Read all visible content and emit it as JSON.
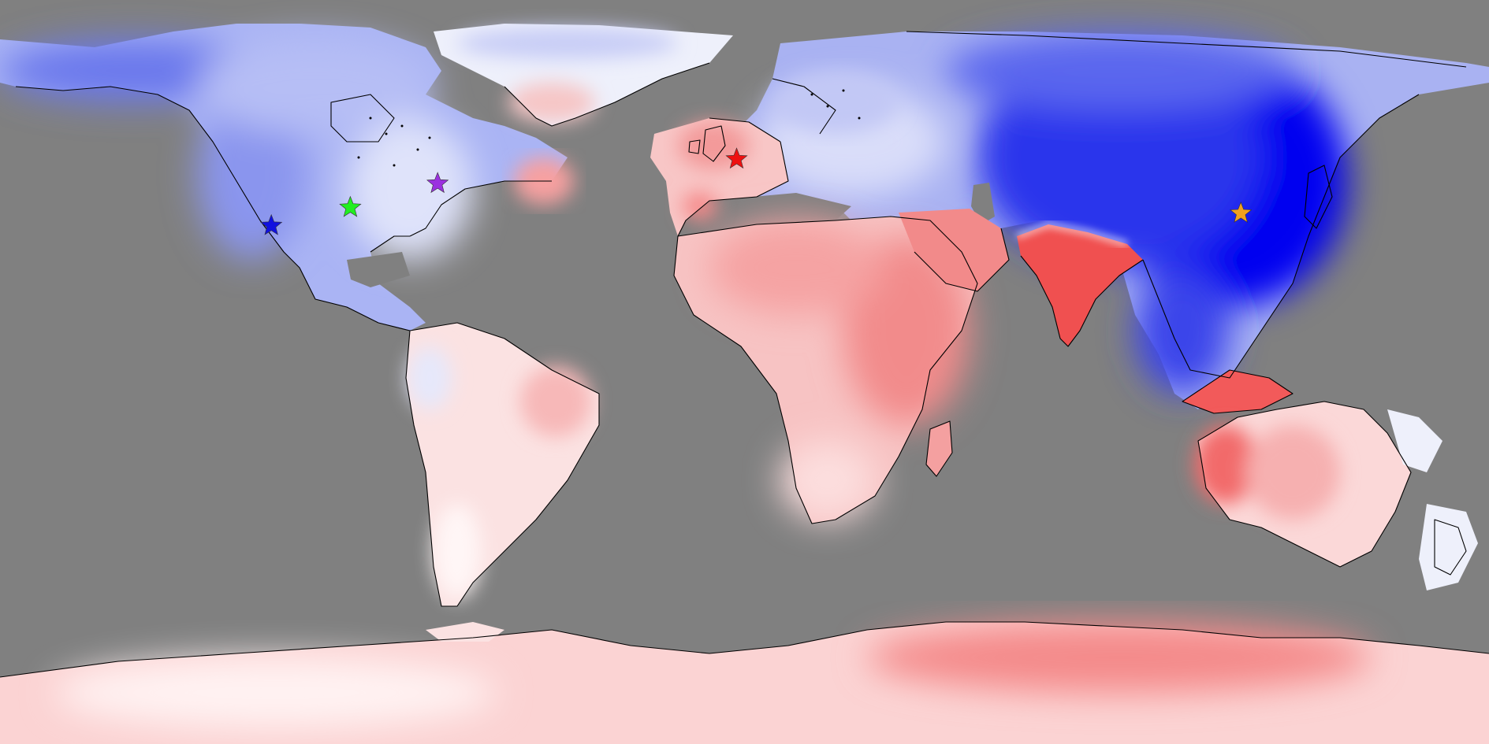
{
  "map": {
    "projection": "equirectangular",
    "ocean_color": "#808080",
    "coastline_color": "#000000",
    "warm_color": "#ff3b3b",
    "cool_color": "#0000ff",
    "neutral_color": "#ffffff"
  },
  "markers": [
    {
      "name": "blue-star-marker",
      "color": "#1010e0",
      "lon": -114.4,
      "lat": 35.4
    },
    {
      "name": "green-star-marker",
      "color": "#22ee22",
      "lon": -95.3,
      "lat": 39.8
    },
    {
      "name": "purple-star-marker",
      "color": "#9b30e0",
      "lon": -74.2,
      "lat": 45.6
    },
    {
      "name": "red-star-marker",
      "color": "#ee1010",
      "lon": -1.9,
      "lat": 51.5
    },
    {
      "name": "orange-star-marker",
      "color": "#f0a020",
      "lon": 120.0,
      "lat": 38.4
    }
  ]
}
